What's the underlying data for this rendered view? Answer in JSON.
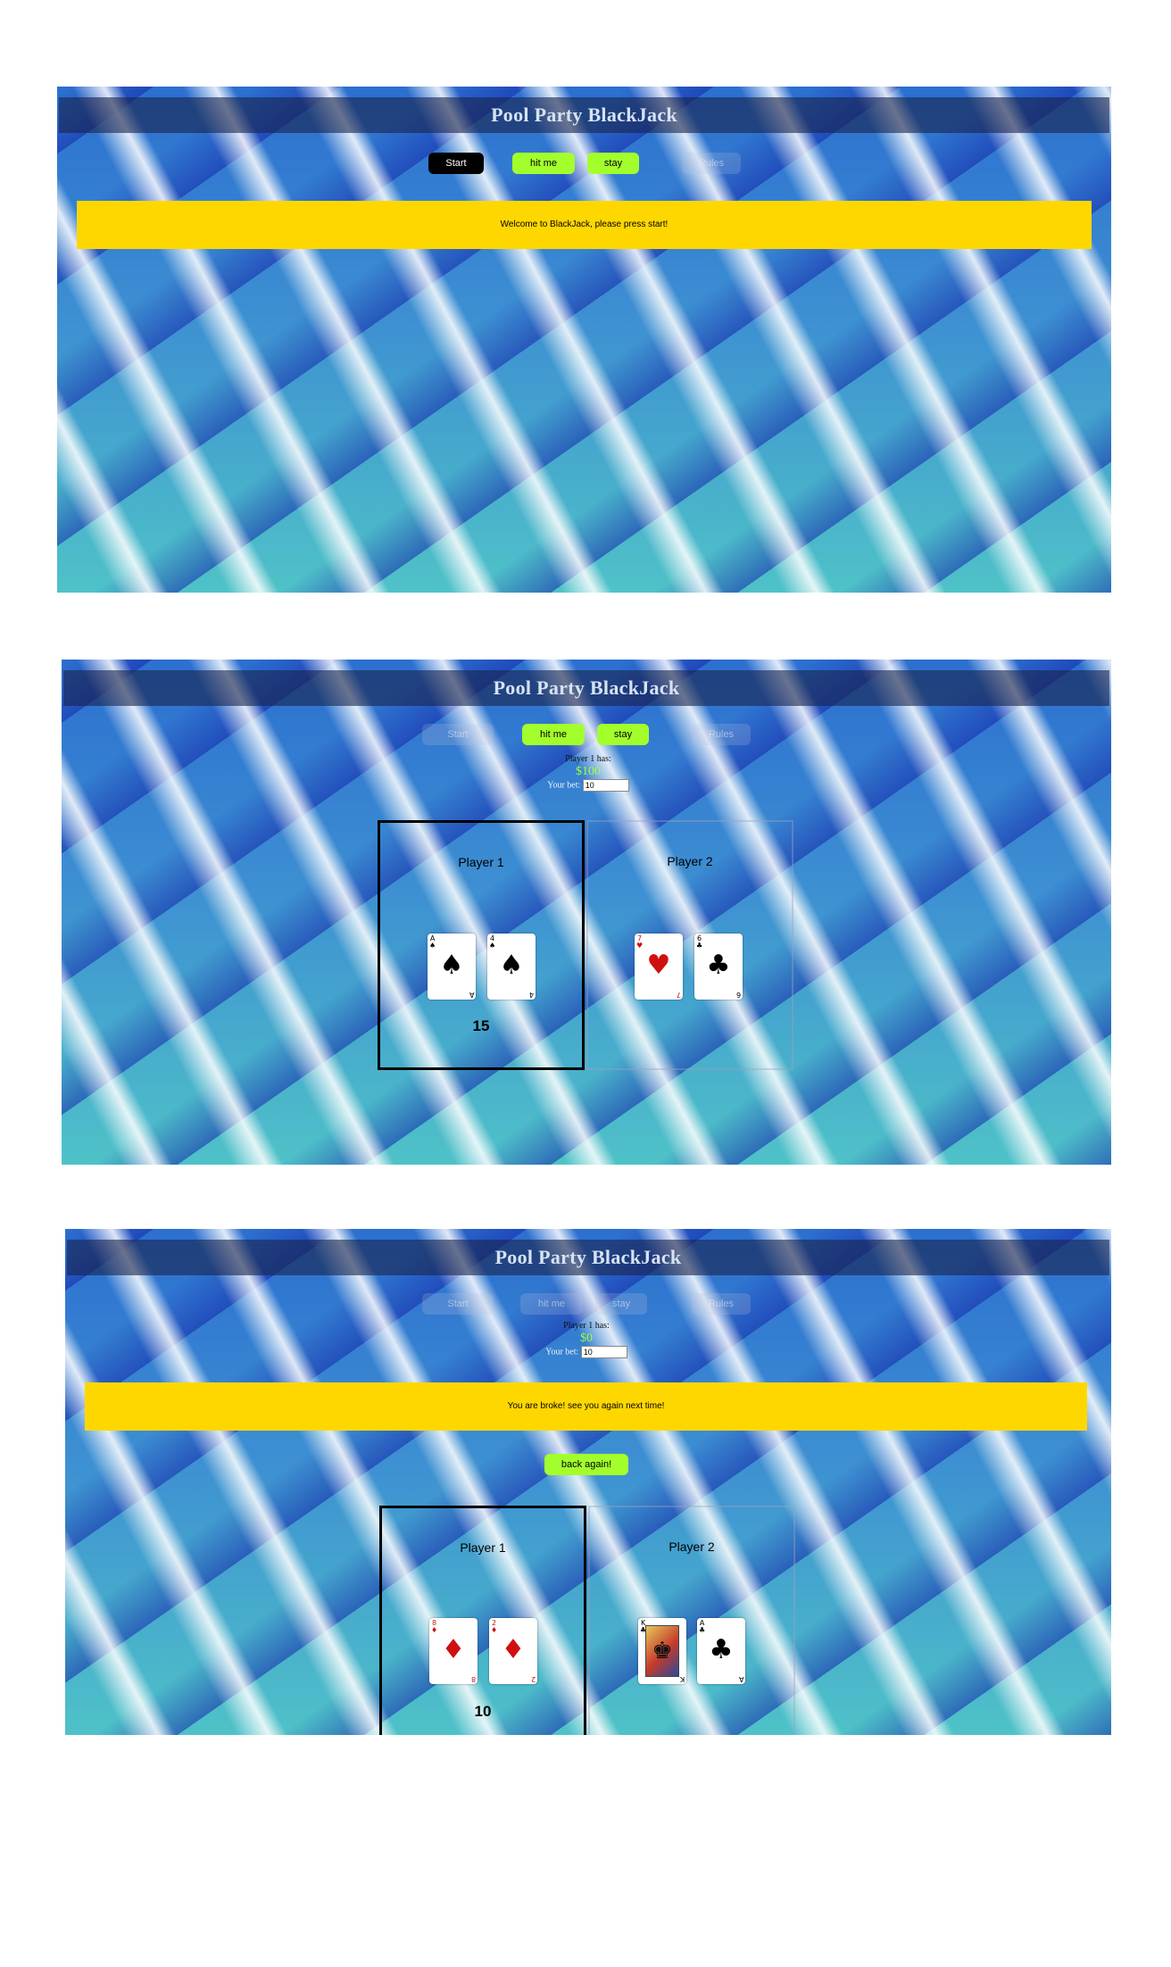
{
  "title": "Pool Party BlackJack",
  "screen1": {
    "buttons": {
      "start": "Start",
      "hit": "hit me",
      "stay": "stay",
      "rules": "Rules"
    },
    "message": "Welcome to BlackJack, please press start!"
  },
  "screen2": {
    "buttons": {
      "start": "Start",
      "hit": "hit me",
      "stay": "stay",
      "rules": "Rules"
    },
    "status": {
      "player_has": "Player 1 has:",
      "money": "$100",
      "bet_label": "Your bet:",
      "bet_value": "10"
    },
    "players": [
      {
        "name": "Player 1",
        "score": "15",
        "cards": [
          {
            "rank": "A",
            "suit": "♠",
            "color": "black"
          },
          {
            "rank": "4",
            "suit": "♠",
            "color": "black"
          }
        ]
      },
      {
        "name": "Player 2",
        "cards": [
          {
            "rank": "7",
            "suit": "♥",
            "color": "red"
          },
          {
            "rank": "6",
            "suit": "♣",
            "color": "black"
          }
        ]
      }
    ]
  },
  "screen3": {
    "buttons": {
      "start": "Start",
      "hit": "hit me",
      "stay": "stay",
      "rules": "Rules"
    },
    "status": {
      "player_has": "Player 1 has:",
      "money": "$0",
      "bet_label": "Your bet:",
      "bet_value": "10"
    },
    "message": "You are broke! see you again next time!",
    "back_button": "back again!",
    "players": [
      {
        "name": "Player 1",
        "score": "10",
        "cards": [
          {
            "rank": "8",
            "suit": "♦",
            "color": "red"
          },
          {
            "rank": "2",
            "suit": "♦",
            "color": "red"
          }
        ]
      },
      {
        "name": "Player 2",
        "cards": [
          {
            "rank": "K",
            "suit": "♣",
            "color": "black"
          },
          {
            "rank": "A",
            "suit": "♣",
            "color": "black"
          }
        ]
      }
    ]
  }
}
